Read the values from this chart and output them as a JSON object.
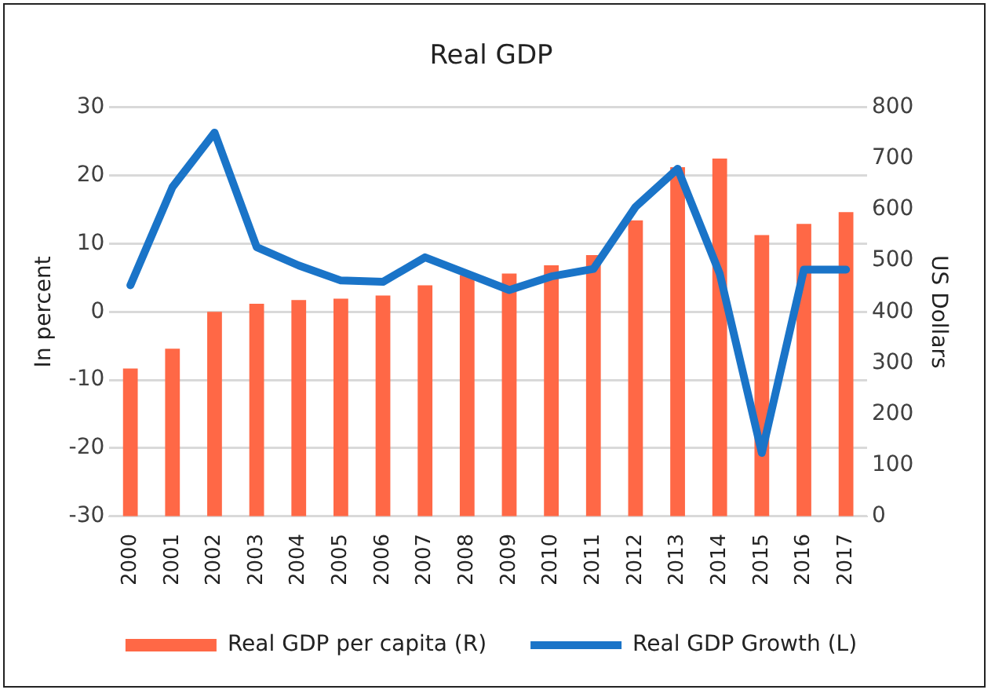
{
  "chart_data": {
    "type": "bar",
    "title": "Real GDP",
    "ylabel": "In percent",
    "y2label": "US Dollars",
    "categories": [
      "2000",
      "2001",
      "2002",
      "2003",
      "2004",
      "2005",
      "2006",
      "2007",
      "2008",
      "2009",
      "2010",
      "2011",
      "2012",
      "2013",
      "2014",
      "2015",
      "2016",
      "2017"
    ],
    "series": [
      {
        "name": "Real GDP per capita (R)",
        "axis": "y2",
        "color": "#ff6846",
        "values": [
          289,
          328,
          400,
          416,
          423,
          426,
          432,
          452,
          472,
          475,
          491,
          511,
          579,
          683,
          700,
          550,
          572,
          595
        ]
      },
      {
        "name": "Real GDP Growth (L)",
        "type": "line",
        "axis": "y",
        "color": "#1a74c8",
        "values": [
          3.9,
          18.3,
          26.3,
          9.5,
          6.8,
          4.6,
          4.4,
          8.0,
          5.6,
          3.2,
          5.2,
          6.3,
          15.4,
          21.0,
          5.6,
          -20.7,
          6.2,
          6.2
        ]
      }
    ],
    "ylim": [
      -30,
      30
    ],
    "yticks": [
      -30,
      -20,
      -10,
      0,
      10,
      20,
      30
    ],
    "y2lim": [
      0,
      800
    ],
    "y2ticks": [
      0,
      100,
      200,
      300,
      400,
      500,
      600,
      700,
      800
    ],
    "grid": "y",
    "legend": "bottom",
    "marker": "none",
    "line_style": "solid"
  }
}
